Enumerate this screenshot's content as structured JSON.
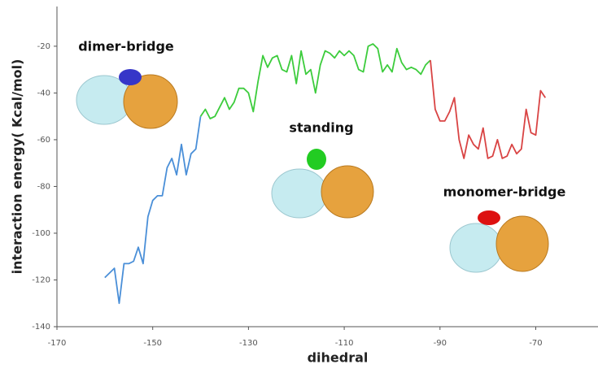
{
  "chart_data": {
    "type": "line",
    "xlabel": "dihedral",
    "ylabel": "interaction energy( Kcal/mol)",
    "xlim": [
      -170,
      -57
    ],
    "ylim": [
      -140,
      -3
    ],
    "xticks": [
      -170,
      -150,
      -130,
      -110,
      -90,
      -70
    ],
    "yticks": [
      -20,
      -40,
      -60,
      -80,
      -100,
      -120,
      -140
    ],
    "series": [
      {
        "color": "#4a8fd8",
        "x": [
          -160,
          -159,
          -158,
          -157,
          -156,
          -155,
          -154,
          -153,
          -152,
          -151,
          -150,
          -149,
          -148,
          -147,
          -146,
          -145,
          -144,
          -143,
          -142,
          -141,
          -140
        ],
        "values": [
          -119,
          -117,
          -115,
          -130,
          -113,
          -113,
          -112,
          -106,
          -113,
          -93,
          -86,
          -84,
          -84,
          -72,
          -68,
          -75,
          -62,
          -75,
          -66,
          -64,
          -50
        ]
      },
      {
        "color": "#3ccc3c",
        "x": [
          -140,
          -139,
          -138,
          -137,
          -136,
          -135,
          -134,
          -133,
          -132,
          -131,
          -130,
          -129,
          -128,
          -127,
          -126,
          -125,
          -124,
          -123,
          -122,
          -121,
          -120,
          -119,
          -118,
          -117,
          -116,
          -115,
          -114,
          -113,
          -112,
          -111,
          -110,
          -109,
          -108,
          -107,
          -106,
          -105,
          -104,
          -103,
          -102,
          -101,
          -100,
          -99,
          -98,
          -97,
          -96,
          -95,
          -94,
          -93,
          -92
        ],
        "values": [
          -50,
          -47,
          -51,
          -50,
          -46,
          -42,
          -47,
          -44,
          -38,
          -38,
          -40,
          -48,
          -35,
          -24,
          -29,
          -25,
          -24,
          -30,
          -31,
          -24,
          -36,
          -22,
          -32,
          -30,
          -40,
          -28,
          -22,
          -23,
          -25,
          -22,
          -24,
          -22,
          -24,
          -30,
          -31,
          -20,
          -19,
          -21,
          -31,
          -28,
          -31,
          -21,
          -27,
          -30,
          -29,
          -30,
          -32,
          -28,
          -26
        ]
      },
      {
        "color": "#d94444",
        "x": [
          -92,
          -91,
          -90,
          -89,
          -88,
          -87,
          -86,
          -85,
          -84,
          -83,
          -82,
          -81,
          -80,
          -79,
          -78,
          -77,
          -76,
          -75,
          -74,
          -73,
          -72,
          -71,
          -70,
          -69,
          -68
        ],
        "values": [
          -26,
          -47,
          -52,
          -52,
          -48,
          -42,
          -60,
          -68,
          -58,
          -62,
          -64,
          -55,
          -68,
          -67,
          -60,
          -68,
          -67,
          -62,
          -66,
          -64,
          -47,
          -57,
          -58,
          -39,
          -42
        ]
      }
    ],
    "annotations": [
      "dimer-bridge",
      "standing",
      "monomer-bridge"
    ]
  }
}
